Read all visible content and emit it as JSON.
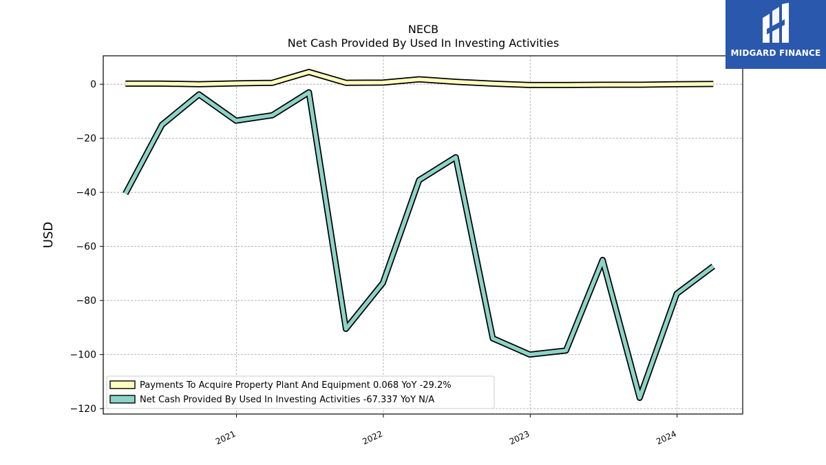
{
  "brand": {
    "name": "MIDGARD FINANCE",
    "colors": {
      "background": "#2a58ad",
      "mark": "#ffffff"
    },
    "icon": "midgard-finance-logo-icon"
  },
  "chart_data": {
    "type": "line",
    "title": "NECB",
    "subtitle": "Net Cash Provided By Used In Investing Activities",
    "xlabel": "",
    "ylabel": "USD",
    "xlim": [
      "2020-02-05",
      "2024-06-12"
    ],
    "ylim": [
      -122,
      10.5
    ],
    "xticks": [
      {
        "label": "2021",
        "date": "2021-01-01"
      },
      {
        "label": "2022",
        "date": "2022-01-01"
      },
      {
        "label": "2023",
        "date": "2023-01-01"
      },
      {
        "label": "2024",
        "date": "2024-01-01"
      }
    ],
    "yticks": [
      0,
      -20,
      -40,
      -60,
      -80,
      -100,
      -120
    ],
    "yticklabels": [
      "0",
      "−20",
      "−40",
      "−60",
      "−80",
      "−100",
      "−120"
    ],
    "grid": true,
    "legend_position": "lower-left",
    "x": [
      "2020-03-31",
      "2020-06-30",
      "2020-09-30",
      "2020-12-31",
      "2021-03-31",
      "2021-06-30",
      "2021-09-30",
      "2021-12-31",
      "2022-03-31",
      "2022-06-30",
      "2022-09-30",
      "2022-12-31",
      "2023-03-31",
      "2023-06-30",
      "2023-09-30",
      "2023-12-31",
      "2024-03-31"
    ],
    "series": [
      {
        "name": "Payments To Acquire Property Plant And Equipment",
        "legend": "Payments To Acquire Property Plant And Equipment  0.068 YoY -29.2%",
        "color": "#ffffbf",
        "values": [
          0.2,
          0.2,
          0.0,
          0.3,
          0.5,
          4.5,
          0.5,
          0.6,
          1.8,
          0.9,
          0.2,
          -0.3,
          -0.3,
          -0.2,
          -0.2,
          0.0,
          0.068
        ]
      },
      {
        "name": "Net Cash Provided By Used In Investing Activities",
        "legend": "Net Cash Provided By Used In Investing Activities  -67.337 YoY N/A",
        "color": "#8dd3c7",
        "values": [
          -40.5,
          -15.0,
          -3.8,
          -13.5,
          -11.5,
          -3.0,
          -90.5,
          -73.5,
          -35.5,
          -27.0,
          -94.0,
          -100.0,
          -98.5,
          -65.0,
          -116.0,
          -77.5,
          -67.337
        ]
      }
    ]
  }
}
